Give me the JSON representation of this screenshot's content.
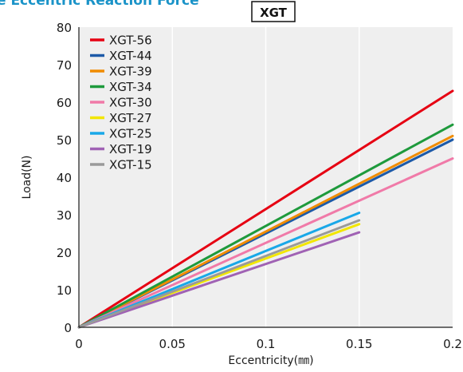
{
  "header": {
    "heading": "e Eccentric Reaction Force",
    "badge": "XGT"
  },
  "chart_data": {
    "type": "line",
    "xlabel": "Eccentricity(㎜)",
    "ylabel": "Load(N)",
    "xlim": [
      0,
      0.2
    ],
    "ylim": [
      0,
      80
    ],
    "x_ticks": [
      "0",
      "0.05",
      "0.1",
      "0.15",
      "0.2"
    ],
    "y_ticks": [
      "0",
      "10",
      "20",
      "30",
      "40",
      "50",
      "60",
      "70",
      "80"
    ],
    "grid": "vertical",
    "legend_position": "top-left",
    "series": [
      {
        "name": "XGT-56",
        "color": "#e60012",
        "x": [
          0,
          0.2
        ],
        "y": [
          0,
          63
        ]
      },
      {
        "name": "XGT-44",
        "color": "#1d5aa8",
        "x": [
          0,
          0.2
        ],
        "y": [
          0,
          50
        ]
      },
      {
        "name": "XGT-39",
        "color": "#f08c00",
        "x": [
          0,
          0.2
        ],
        "y": [
          0,
          51
        ]
      },
      {
        "name": "XGT-34",
        "color": "#1e9a3c",
        "x": [
          0,
          0.2
        ],
        "y": [
          0,
          54
        ]
      },
      {
        "name": "XGT-30",
        "color": "#f07aa8",
        "x": [
          0,
          0.2
        ],
        "y": [
          0,
          45
        ]
      },
      {
        "name": "XGT-27",
        "color": "#f2e600",
        "x": [
          0,
          0.15
        ],
        "y": [
          0,
          27.5
        ]
      },
      {
        "name": "XGT-25",
        "color": "#19a8e8",
        "x": [
          0,
          0.15
        ],
        "y": [
          0,
          30.5
        ]
      },
      {
        "name": "XGT-19",
        "color": "#a062b4",
        "x": [
          0,
          0.15
        ],
        "y": [
          0,
          25.3
        ]
      },
      {
        "name": "XGT-15",
        "color": "#9a9a9a",
        "x": [
          0,
          0.15
        ],
        "y": [
          0,
          28.5
        ]
      }
    ]
  }
}
